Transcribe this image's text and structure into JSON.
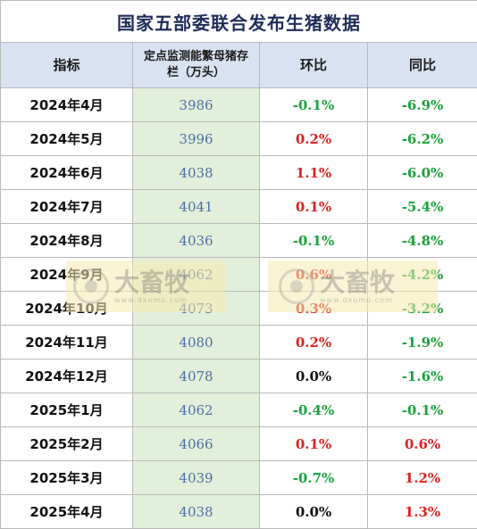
{
  "title": "国家五部委联合发布生猪数据",
  "headers": {
    "indicator": "指标",
    "inventory": "定点监测能繁母猪存栏（万头）",
    "mom": "环比",
    "yoy": "同比"
  },
  "rows": [
    {
      "month": "2024年4月",
      "value": "3986",
      "mom": "-0.1%",
      "yoy": "-6.9%"
    },
    {
      "month": "2024年5月",
      "value": "3996",
      "mom": "0.2%",
      "yoy": "-6.2%"
    },
    {
      "month": "2024年6月",
      "value": "4038",
      "mom": "1.1%",
      "yoy": "-6.0%"
    },
    {
      "month": "2024年7月",
      "value": "4041",
      "mom": "0.1%",
      "yoy": "-5.4%"
    },
    {
      "month": "2024年8月",
      "value": "4036",
      "mom": "-0.1%",
      "yoy": "-4.8%"
    },
    {
      "month": "2024年9月",
      "value": "4062",
      "mom": "0.6%",
      "yoy": "-4.2%"
    },
    {
      "month": "2024年10月",
      "value": "4073",
      "mom": "0.3%",
      "yoy": "-3.2%"
    },
    {
      "month": "2024年11月",
      "value": "4080",
      "mom": "0.2%",
      "yoy": "-1.9%"
    },
    {
      "month": "2024年12月",
      "value": "4078",
      "mom": "0.0%",
      "yoy": "-1.6%"
    },
    {
      "month": "2025年1月",
      "value": "4062",
      "mom": "-0.4%",
      "yoy": "-0.1%"
    },
    {
      "month": "2025年2月",
      "value": "4066",
      "mom": "0.1%",
      "yoy": "0.6%"
    },
    {
      "month": "2025年3月",
      "value": "4039",
      "mom": "-0.7%",
      "yoy": "1.2%"
    },
    {
      "month": "2025年4月",
      "value": "4038",
      "mom": "0.0%",
      "yoy": "1.3%"
    }
  ],
  "watermark": {
    "name": "大畜牧",
    "url": "www.dxumu.com"
  },
  "colors": {
    "positive": "#e02020",
    "negative": "#19a33a",
    "zero": "#111111",
    "header_bg": "#d9e2f3",
    "value_bg": "#e2efda"
  }
}
